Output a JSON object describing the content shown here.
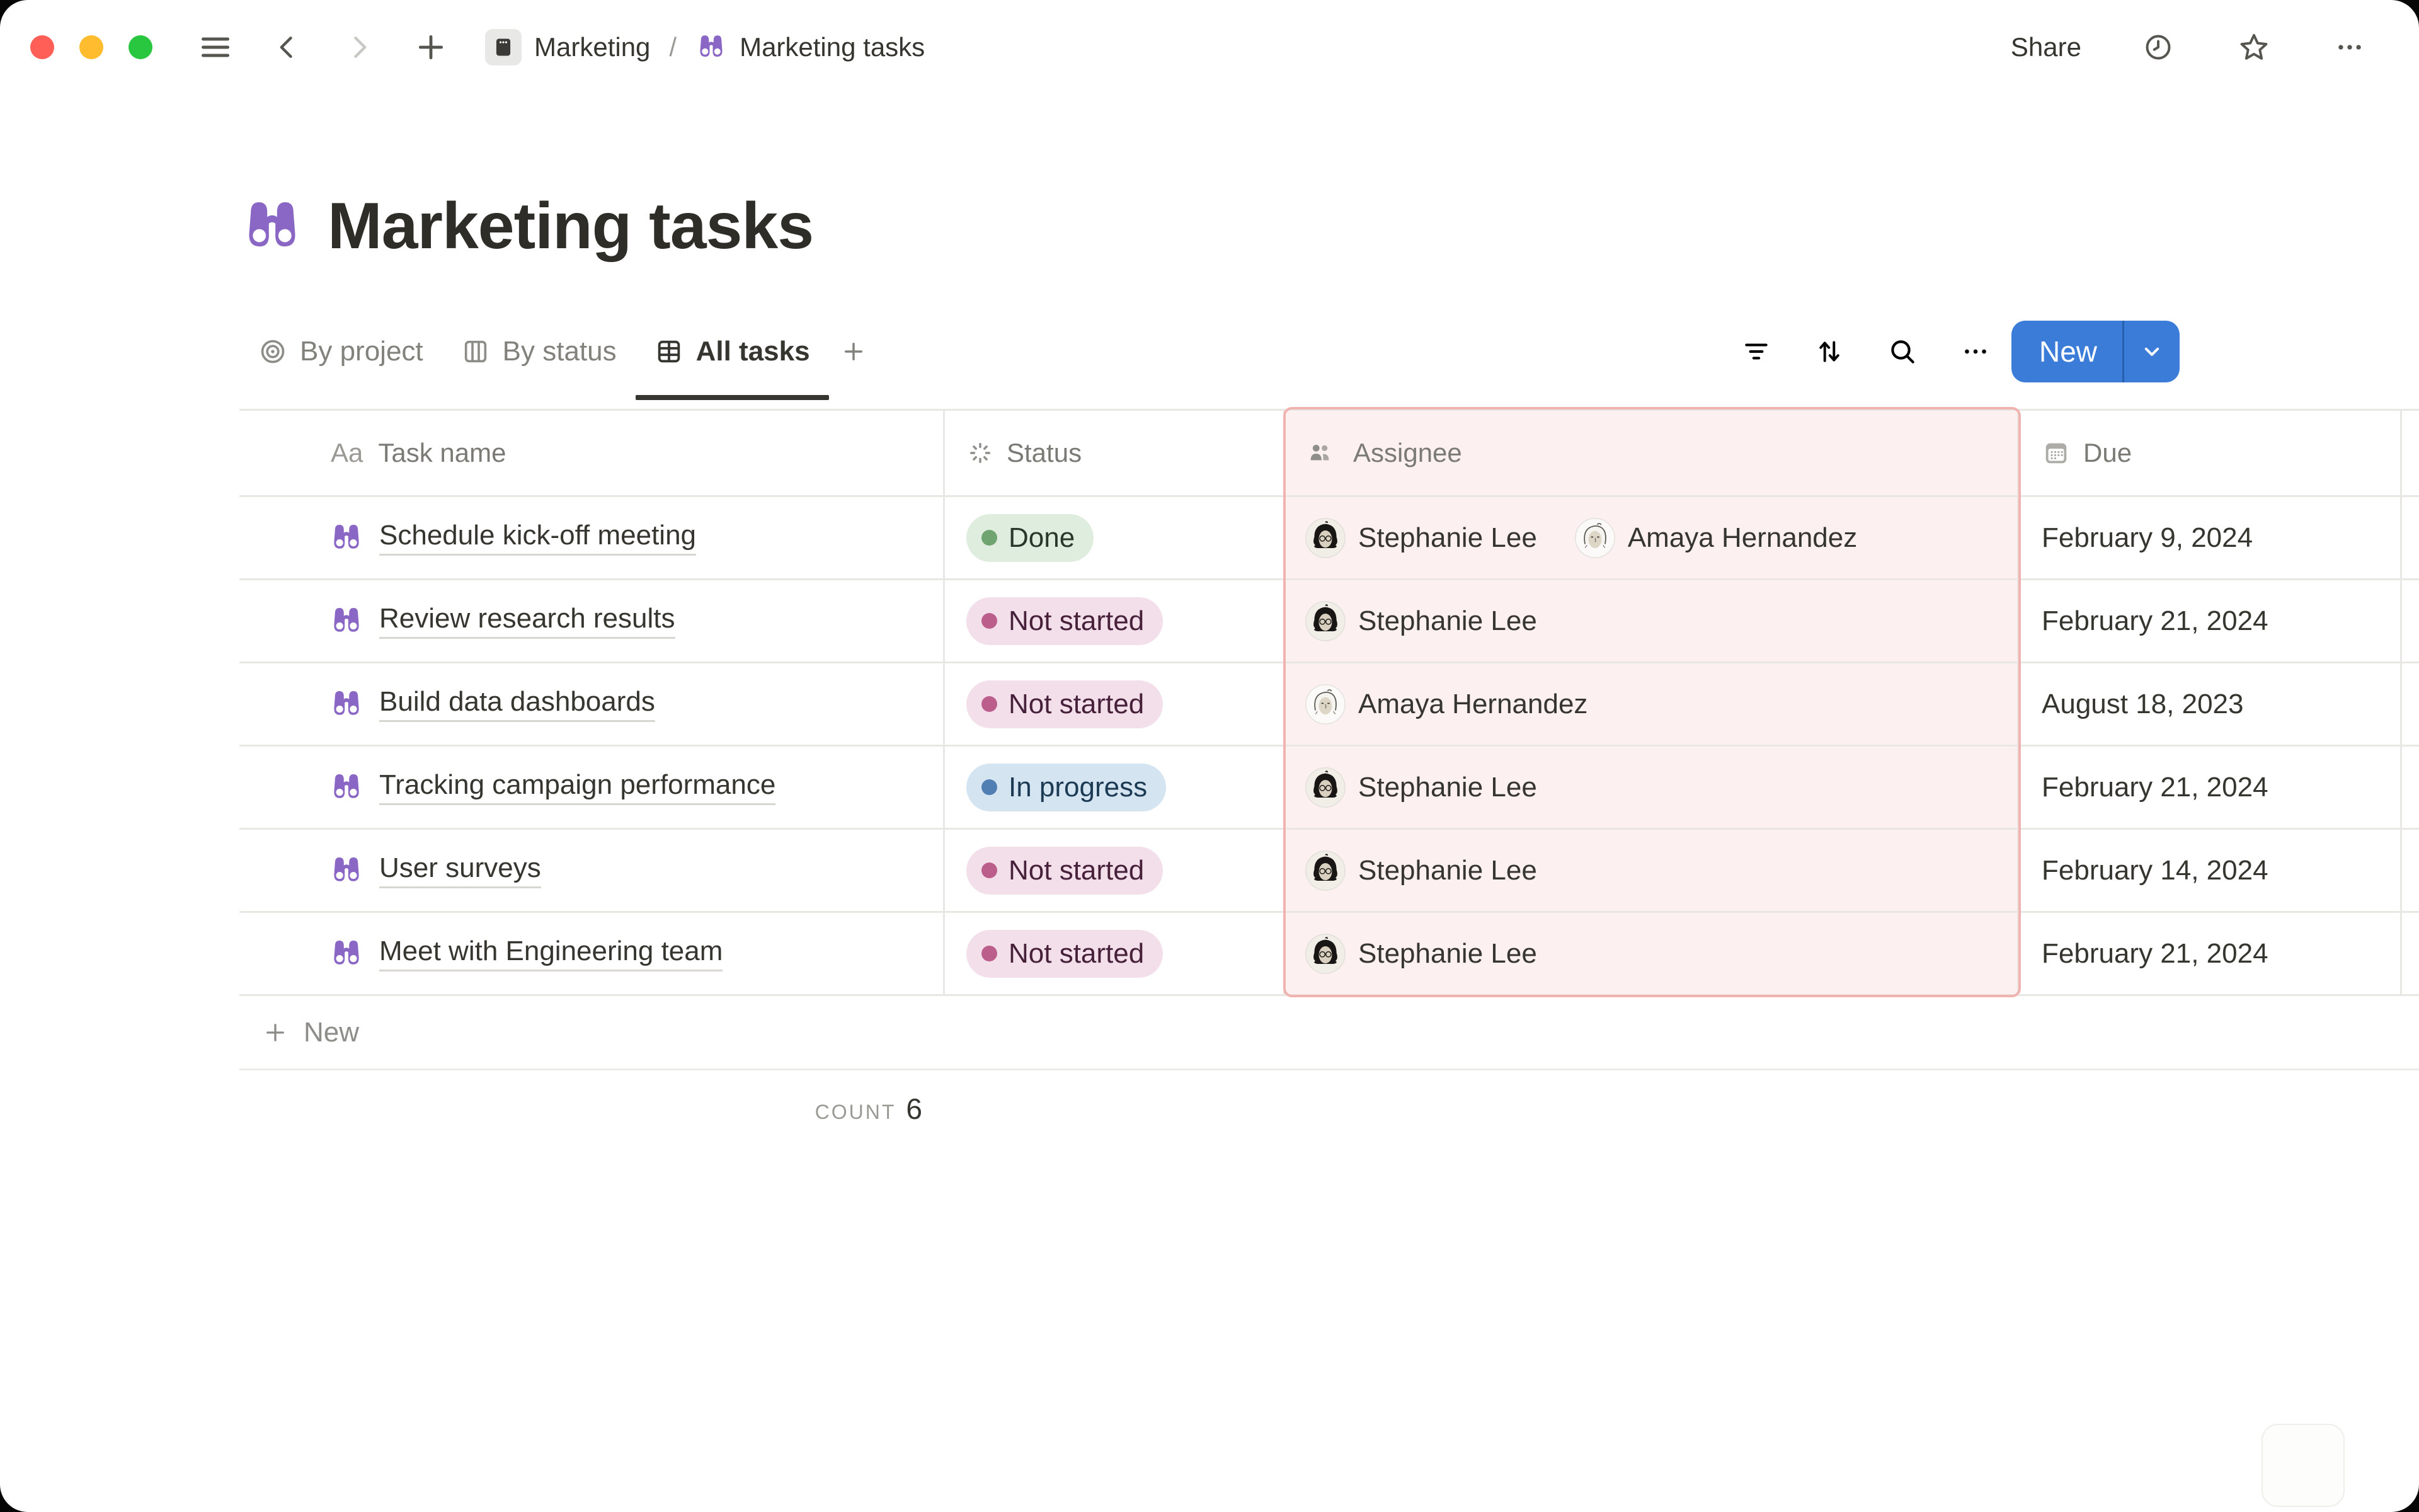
{
  "titlebar": {
    "share_label": "Share",
    "breadcrumb": {
      "separator": "/",
      "items": [
        {
          "label": "Marketing",
          "icon": "notebook-icon"
        },
        {
          "label": "Marketing tasks",
          "icon": "binoculars-icon"
        }
      ]
    }
  },
  "page": {
    "title": "Marketing tasks",
    "icon": "binoculars-icon"
  },
  "views": {
    "tabs": [
      {
        "label": "By project",
        "icon": "target-icon",
        "active": false
      },
      {
        "label": "By status",
        "icon": "board-icon",
        "active": false
      },
      {
        "label": "All tasks",
        "icon": "table-icon",
        "active": true
      }
    ],
    "new_button_label": "New"
  },
  "table": {
    "columns": [
      {
        "label": "Task name",
        "icon": "text-icon",
        "icon_glyph": "Aa"
      },
      {
        "label": "Status",
        "icon": "spinner-icon"
      },
      {
        "label": "Assignee",
        "icon": "people-icon",
        "selected": true
      },
      {
        "label": "Due",
        "icon": "calendar-icon"
      }
    ],
    "rows": [
      {
        "task": "Schedule kick-off meeting",
        "status": "Done",
        "status_color": "green",
        "assignees": [
          "Stephanie Lee",
          "Amaya Hernandez"
        ],
        "due": "February 9, 2024"
      },
      {
        "task": "Review research results",
        "status": "Not started",
        "status_color": "pink",
        "assignees": [
          "Stephanie Lee"
        ],
        "due": "February 21, 2024"
      },
      {
        "task": "Build data dashboards",
        "status": "Not started",
        "status_color": "pink",
        "assignees": [
          "Amaya Hernandez"
        ],
        "due": "August 18, 2023"
      },
      {
        "task": "Tracking campaign performance",
        "status": "In progress",
        "status_color": "blue",
        "assignees": [
          "Stephanie Lee"
        ],
        "due": "February 21, 2024"
      },
      {
        "task": "User surveys",
        "status": "Not started",
        "status_color": "pink",
        "assignees": [
          "Stephanie Lee"
        ],
        "due": "February 14, 2024"
      },
      {
        "task": "Meet with Engineering team",
        "status": "Not started",
        "status_color": "pink",
        "assignees": [
          "Stephanie Lee"
        ],
        "due": "February 21, 2024"
      }
    ],
    "new_row_label": "New",
    "footer": {
      "aggregate_label": "COUNT",
      "aggregate_value": "6"
    }
  },
  "people": {
    "Stephanie Lee": "dark-hair",
    "Amaya Hernandez": "light-hair"
  },
  "colors": {
    "accent_blue": "#3B7CD9",
    "binoculars_purple": "#8A66C5",
    "selection_border": "#F1B3AF",
    "selection_fill": "#FCF1F0",
    "status_green_bg": "#DEEDDD",
    "status_green_dot": "#6FA471",
    "status_pink_bg": "#F2DFEA",
    "status_pink_dot": "#BC5E8C",
    "status_blue_bg": "#D4E4F1",
    "status_blue_dot": "#527FB3",
    "traffic_red": "#FF5F57",
    "traffic_yellow": "#FEBC2E",
    "traffic_green": "#29C73F"
  }
}
